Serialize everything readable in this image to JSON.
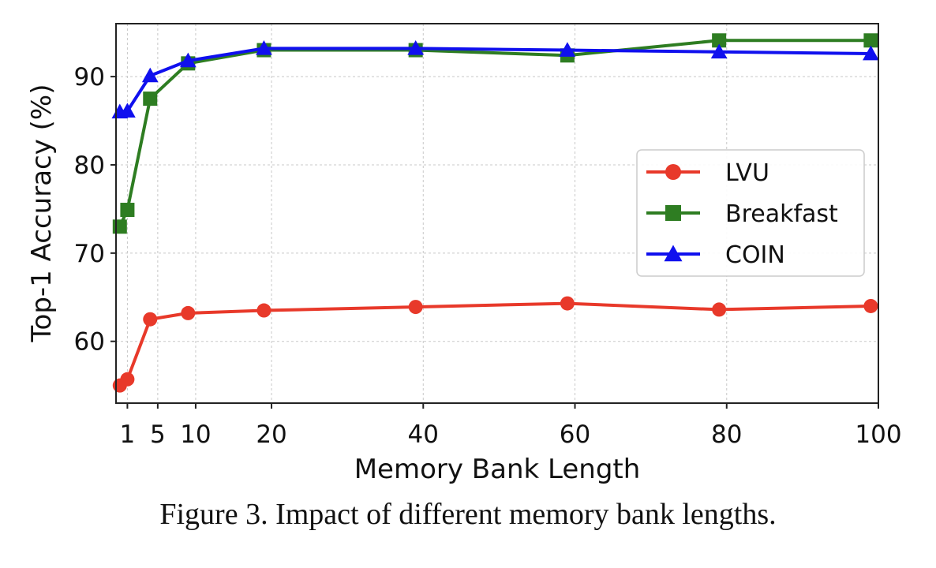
{
  "chart_data": {
    "type": "line",
    "xlabel": "Memory Bank Length",
    "ylabel": "Top-1 Accuracy (%)",
    "xlim": [
      -0.5,
      100
    ],
    "ylim": [
      53,
      96
    ],
    "x_ticks": [
      1,
      5,
      10,
      20,
      40,
      60,
      80,
      100
    ],
    "y_ticks": [
      60,
      70,
      80,
      90
    ],
    "grid": true,
    "legend_position": "center-right",
    "series": [
      {
        "name": "LVU",
        "color": "#e8392a",
        "marker": "circle",
        "x": [
          0,
          1,
          4,
          9,
          19,
          39,
          59,
          79,
          99
        ],
        "y": [
          55.0,
          55.7,
          62.5,
          63.2,
          63.5,
          63.9,
          64.3,
          63.6,
          64.0
        ]
      },
      {
        "name": "Breakfast",
        "color": "#2e7d22",
        "marker": "square",
        "x": [
          0,
          1,
          4,
          9,
          19,
          39,
          59,
          79,
          99
        ],
        "y": [
          73.0,
          74.9,
          87.5,
          91.5,
          93.0,
          93.0,
          92.4,
          94.1,
          94.1
        ]
      },
      {
        "name": "COIN",
        "color": "#1010ee",
        "marker": "triangle",
        "x": [
          0,
          1,
          4,
          9,
          19,
          39,
          59,
          79,
          99
        ],
        "y": [
          86.0,
          86.1,
          90.1,
          91.8,
          93.2,
          93.2,
          93.0,
          92.8,
          92.6
        ]
      }
    ]
  },
  "caption": "Figure 3. Impact of different memory bank lengths."
}
